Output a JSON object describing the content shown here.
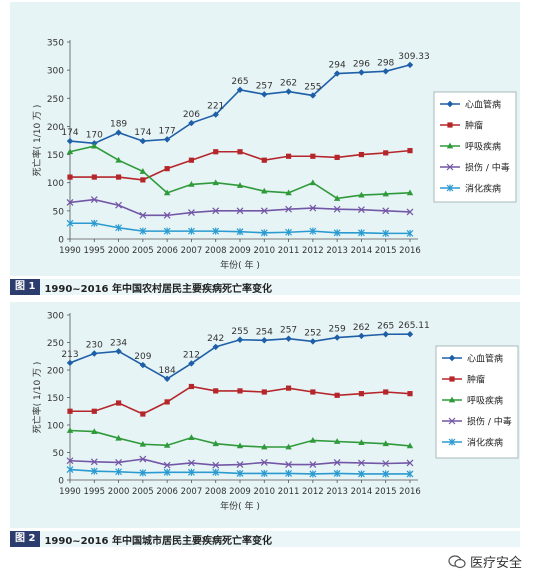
{
  "chart_data": [
    {
      "type": "line",
      "title": "1990~2016 年中国农村居民主要疾病死亡率变化",
      "figure_tag": "图 1",
      "xlabel": "年份( 年 )",
      "ylabel": "死亡率( 1/10 万 )",
      "ylim": [
        0,
        350
      ],
      "yticks": [
        0,
        50,
        100,
        150,
        200,
        250,
        300,
        350
      ],
      "categories": [
        "1990",
        "1995",
        "2000",
        "2005",
        "2006",
        "2007",
        "2008",
        "2009",
        "2010",
        "2011",
        "2012",
        "2013",
        "2014",
        "2015",
        "2016"
      ],
      "grid": false,
      "legend_position": "right",
      "series": [
        {
          "name": "心血管病",
          "color": "#1f5fa8",
          "marker": "diamond",
          "values": [
            174,
            170,
            189,
            174,
            177,
            206,
            221,
            265,
            257,
            262,
            255,
            294,
            296,
            298,
            309.33
          ],
          "data_labels": [
            "174",
            "170",
            "189",
            "174",
            "177",
            "206",
            "221",
            "265",
            "257",
            "262",
            "255",
            "294",
            "296",
            "298",
            "309.33"
          ]
        },
        {
          "name": "肿瘤",
          "color": "#b5262b",
          "marker": "square",
          "values": [
            110,
            110,
            110,
            105,
            125,
            140,
            155,
            155,
            140,
            147,
            147,
            145,
            150,
            153,
            157
          ]
        },
        {
          "name": "呼吸疾病",
          "color": "#2f9a3a",
          "marker": "triangle",
          "values": [
            155,
            165,
            140,
            120,
            82,
            97,
            100,
            95,
            85,
            82,
            100,
            72,
            78,
            80,
            82
          ]
        },
        {
          "name": "损伤 / 中毒",
          "color": "#7357a6",
          "marker": "x",
          "values": [
            65,
            70,
            60,
            42,
            42,
            47,
            50,
            50,
            50,
            53,
            55,
            53,
            52,
            50,
            48
          ]
        },
        {
          "name": "消化疾病",
          "color": "#2a9ad0",
          "marker": "star",
          "values": [
            28,
            28,
            20,
            14,
            14,
            14,
            14,
            13,
            11,
            12,
            14,
            11,
            11,
            10,
            10
          ]
        }
      ]
    },
    {
      "type": "line",
      "title": "1990~2016 年中国城市居民主要疾病死亡率变化",
      "figure_tag": "图 2",
      "xlabel": "年份( 年 )",
      "ylabel": "死亡率( 1/10 万 )",
      "ylim": [
        0,
        300
      ],
      "yticks": [
        0,
        50,
        100,
        150,
        200,
        250,
        300
      ],
      "categories": [
        "1990",
        "1995",
        "2000",
        "2005",
        "2006",
        "2007",
        "2008",
        "2009",
        "2010",
        "2011",
        "2012",
        "2013",
        "2014",
        "2015",
        "2016"
      ],
      "grid": false,
      "legend_position": "right",
      "series": [
        {
          "name": "心血管病",
          "color": "#1f5fa8",
          "marker": "diamond",
          "values": [
            213,
            230,
            234,
            209,
            184,
            212,
            242,
            255,
            254,
            257,
            252,
            259,
            262,
            265,
            265.11
          ],
          "data_labels": [
            "213",
            "230",
            "234",
            "209",
            "184",
            "212",
            "242",
            "255",
            "254",
            "257",
            "252",
            "259",
            "262",
            "265",
            "265.11"
          ]
        },
        {
          "name": "肿瘤",
          "color": "#b5262b",
          "marker": "square",
          "values": [
            125,
            125,
            140,
            120,
            142,
            170,
            162,
            162,
            160,
            167,
            160,
            154,
            157,
            160,
            157
          ]
        },
        {
          "name": "呼吸疾病",
          "color": "#2f9a3a",
          "marker": "triangle",
          "values": [
            90,
            88,
            76,
            65,
            63,
            77,
            66,
            62,
            60,
            60,
            72,
            70,
            68,
            66,
            62
          ]
        },
        {
          "name": "损伤 / 中毒",
          "color": "#7357a6",
          "marker": "x",
          "values": [
            35,
            33,
            32,
            38,
            27,
            31,
            27,
            28,
            32,
            28,
            28,
            32,
            31,
            30,
            31
          ]
        },
        {
          "name": "消化疾病",
          "color": "#2a9ad0",
          "marker": "star",
          "values": [
            19,
            16,
            15,
            13,
            14,
            14,
            14,
            12,
            12,
            12,
            11,
            12,
            11,
            11,
            11
          ]
        }
      ]
    }
  ],
  "watermark": {
    "text": "医疗安全"
  },
  "colors": {
    "panel_bg": "#e6f4f6",
    "caption_tag_bg": "#2c3c6c",
    "axis": "#555555"
  }
}
